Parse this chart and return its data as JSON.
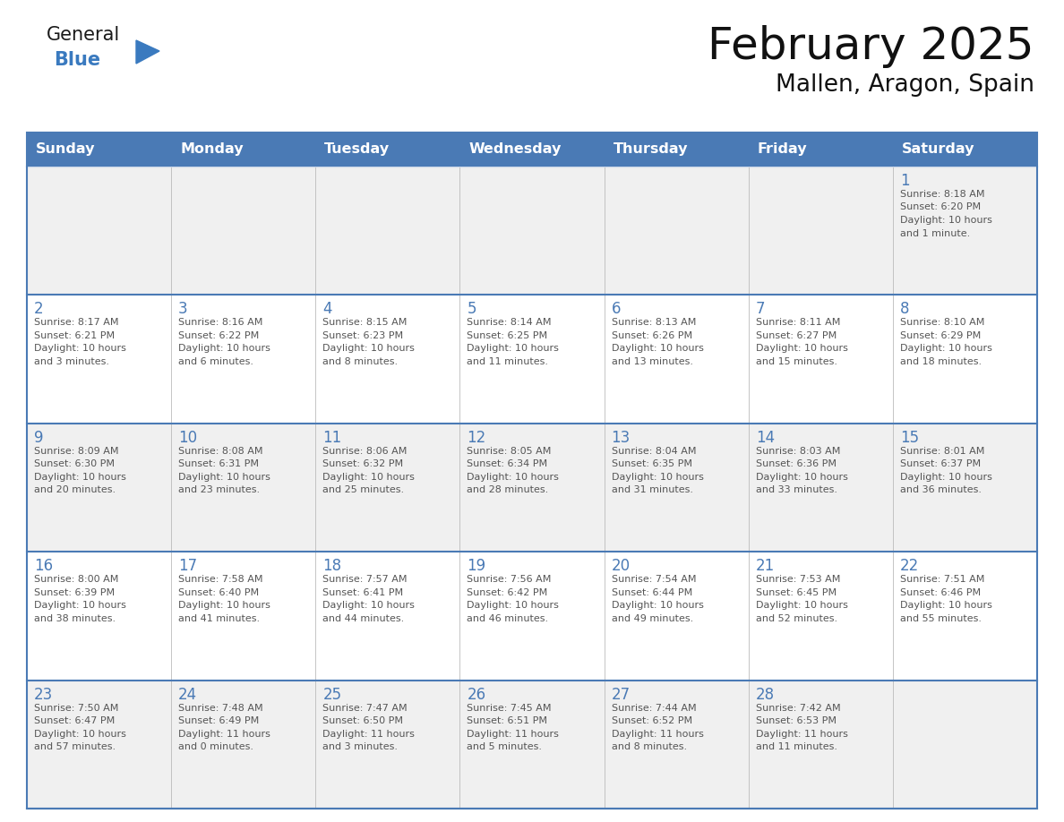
{
  "title": "February 2025",
  "subtitle": "Mallen, Aragon, Spain",
  "header_color": "#4a7ab5",
  "header_text_color": "#FFFFFF",
  "cell_bg_white": "#FFFFFF",
  "cell_bg_gray": "#F0F0F0",
  "border_color": "#4a7ab5",
  "day_num_color": "#4a7ab5",
  "text_color": "#555555",
  "grid_line_color": "#bbbbbb",
  "day_headers": [
    "Sunday",
    "Monday",
    "Tuesday",
    "Wednesday",
    "Thursday",
    "Friday",
    "Saturday"
  ],
  "weeks": [
    [
      {
        "day": "",
        "info": ""
      },
      {
        "day": "",
        "info": ""
      },
      {
        "day": "",
        "info": ""
      },
      {
        "day": "",
        "info": ""
      },
      {
        "day": "",
        "info": ""
      },
      {
        "day": "",
        "info": ""
      },
      {
        "day": "1",
        "info": "Sunrise: 8:18 AM\nSunset: 6:20 PM\nDaylight: 10 hours\nand 1 minute."
      }
    ],
    [
      {
        "day": "2",
        "info": "Sunrise: 8:17 AM\nSunset: 6:21 PM\nDaylight: 10 hours\nand 3 minutes."
      },
      {
        "day": "3",
        "info": "Sunrise: 8:16 AM\nSunset: 6:22 PM\nDaylight: 10 hours\nand 6 minutes."
      },
      {
        "day": "4",
        "info": "Sunrise: 8:15 AM\nSunset: 6:23 PM\nDaylight: 10 hours\nand 8 minutes."
      },
      {
        "day": "5",
        "info": "Sunrise: 8:14 AM\nSunset: 6:25 PM\nDaylight: 10 hours\nand 11 minutes."
      },
      {
        "day": "6",
        "info": "Sunrise: 8:13 AM\nSunset: 6:26 PM\nDaylight: 10 hours\nand 13 minutes."
      },
      {
        "day": "7",
        "info": "Sunrise: 8:11 AM\nSunset: 6:27 PM\nDaylight: 10 hours\nand 15 minutes."
      },
      {
        "day": "8",
        "info": "Sunrise: 8:10 AM\nSunset: 6:29 PM\nDaylight: 10 hours\nand 18 minutes."
      }
    ],
    [
      {
        "day": "9",
        "info": "Sunrise: 8:09 AM\nSunset: 6:30 PM\nDaylight: 10 hours\nand 20 minutes."
      },
      {
        "day": "10",
        "info": "Sunrise: 8:08 AM\nSunset: 6:31 PM\nDaylight: 10 hours\nand 23 minutes."
      },
      {
        "day": "11",
        "info": "Sunrise: 8:06 AM\nSunset: 6:32 PM\nDaylight: 10 hours\nand 25 minutes."
      },
      {
        "day": "12",
        "info": "Sunrise: 8:05 AM\nSunset: 6:34 PM\nDaylight: 10 hours\nand 28 minutes."
      },
      {
        "day": "13",
        "info": "Sunrise: 8:04 AM\nSunset: 6:35 PM\nDaylight: 10 hours\nand 31 minutes."
      },
      {
        "day": "14",
        "info": "Sunrise: 8:03 AM\nSunset: 6:36 PM\nDaylight: 10 hours\nand 33 minutes."
      },
      {
        "day": "15",
        "info": "Sunrise: 8:01 AM\nSunset: 6:37 PM\nDaylight: 10 hours\nand 36 minutes."
      }
    ],
    [
      {
        "day": "16",
        "info": "Sunrise: 8:00 AM\nSunset: 6:39 PM\nDaylight: 10 hours\nand 38 minutes."
      },
      {
        "day": "17",
        "info": "Sunrise: 7:58 AM\nSunset: 6:40 PM\nDaylight: 10 hours\nand 41 minutes."
      },
      {
        "day": "18",
        "info": "Sunrise: 7:57 AM\nSunset: 6:41 PM\nDaylight: 10 hours\nand 44 minutes."
      },
      {
        "day": "19",
        "info": "Sunrise: 7:56 AM\nSunset: 6:42 PM\nDaylight: 10 hours\nand 46 minutes."
      },
      {
        "day": "20",
        "info": "Sunrise: 7:54 AM\nSunset: 6:44 PM\nDaylight: 10 hours\nand 49 minutes."
      },
      {
        "day": "21",
        "info": "Sunrise: 7:53 AM\nSunset: 6:45 PM\nDaylight: 10 hours\nand 52 minutes."
      },
      {
        "day": "22",
        "info": "Sunrise: 7:51 AM\nSunset: 6:46 PM\nDaylight: 10 hours\nand 55 minutes."
      }
    ],
    [
      {
        "day": "23",
        "info": "Sunrise: 7:50 AM\nSunset: 6:47 PM\nDaylight: 10 hours\nand 57 minutes."
      },
      {
        "day": "24",
        "info": "Sunrise: 7:48 AM\nSunset: 6:49 PM\nDaylight: 11 hours\nand 0 minutes."
      },
      {
        "day": "25",
        "info": "Sunrise: 7:47 AM\nSunset: 6:50 PM\nDaylight: 11 hours\nand 3 minutes."
      },
      {
        "day": "26",
        "info": "Sunrise: 7:45 AM\nSunset: 6:51 PM\nDaylight: 11 hours\nand 5 minutes."
      },
      {
        "day": "27",
        "info": "Sunrise: 7:44 AM\nSunset: 6:52 PM\nDaylight: 11 hours\nand 8 minutes."
      },
      {
        "day": "28",
        "info": "Sunrise: 7:42 AM\nSunset: 6:53 PM\nDaylight: 11 hours\nand 11 minutes."
      },
      {
        "day": "",
        "info": ""
      }
    ]
  ],
  "logo_general_color": "#1a1a1a",
  "logo_blue_color": "#3a7abf",
  "logo_triangle_color": "#3a7abf",
  "fig_width": 11.88,
  "fig_height": 9.18,
  "dpi": 100
}
